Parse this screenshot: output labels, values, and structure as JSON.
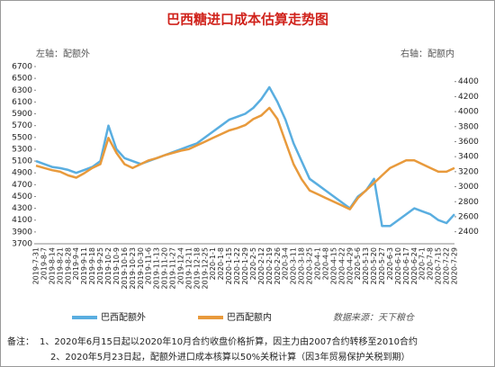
{
  "chart_data": {
    "type": "line",
    "title": "巴西糖进口成本估算走势图",
    "left_axis_label": "左轴：配额外",
    "right_axis_label": "右轴：配额内",
    "source": "数据来源：天下粮仓",
    "notes_title": "备注：",
    "notes": [
      "1、2020年6月15日起以2020年10月合约收盘价格折算，因主力由2007合约转移至2010合约",
      "2、2020年5月23日起，配额外进口成本核算以50%关税计算（因3年贸易保护关税到期）"
    ],
    "categories": [
      "2019-7-31",
      "2019-8-7",
      "2019-8-14",
      "2019-8-21",
      "2019-8-28",
      "2019-9-4",
      "2019-9-11",
      "2019-9-18",
      "2019-9-25",
      "2019-10-2",
      "2019-10-9",
      "2019-10-16",
      "2019-10-23",
      "2019-10-30",
      "2019-11-6",
      "2019-11-13",
      "2019-11-20",
      "2019-11-27",
      "2019-12-4",
      "2019-12-11",
      "2019-12-18",
      "2019-12-25",
      "2020-1-1",
      "2020-1-8",
      "2020-1-15",
      "2020-1-22",
      "2020-1-29",
      "2020-2-5",
      "2020-2-12",
      "2020-2-19",
      "2020-2-26",
      "2020-3-4",
      "2020-3-11",
      "2020-3-18",
      "2020-3-25",
      "2020-4-1",
      "2020-4-8",
      "2020-4-15",
      "2020-4-22",
      "2020-4-29",
      "2020-5-6",
      "2020-5-13",
      "2020-5-20",
      "2020-5-27",
      "2020-6-3",
      "2020-6-10",
      "2020-6-17",
      "2020-6-24",
      "2020-7-1",
      "2020-7-8",
      "2020-7-15",
      "2020-7-22",
      "2020-7-29"
    ],
    "series": [
      {
        "name": "巴西配额外",
        "color": "#5aaee0",
        "axis": "y",
        "values": [
          5100,
          5050,
          5000,
          4980,
          4950,
          4900,
          4950,
          5000,
          5100,
          5700,
          5300,
          5150,
          5100,
          5050,
          5100,
          5150,
          5200,
          5250,
          5300,
          5350,
          5400,
          5500,
          5600,
          5700,
          5800,
          5850,
          5900,
          6000,
          6150,
          6350,
          6100,
          5800,
          5400,
          5100,
          4800,
          4700,
          4600,
          4500,
          4400,
          4300,
          4500,
          4600,
          4800,
          4000,
          4000,
          4100,
          4200,
          4300,
          4250,
          4200,
          4100,
          4050,
          4200
        ]
      },
      {
        "name": "巴西配额内",
        "color": "#e89a3c",
        "axis": "y2",
        "values": [
          3280,
          3250,
          3220,
          3200,
          3150,
          3120,
          3180,
          3250,
          3300,
          3650,
          3450,
          3300,
          3250,
          3300,
          3350,
          3380,
          3420,
          3450,
          3480,
          3500,
          3550,
          3600,
          3650,
          3700,
          3750,
          3780,
          3820,
          3900,
          3950,
          4050,
          3900,
          3600,
          3300,
          3100,
          2950,
          2900,
          2850,
          2800,
          2750,
          2700,
          2850,
          2950,
          3050,
          3150,
          3250,
          3300,
          3350,
          3350,
          3300,
          3250,
          3200,
          3200,
          3250
        ]
      }
    ],
    "ylim": [
      3700,
      6700
    ],
    "yticks": [
      3700,
      3900,
      4100,
      4300,
      4500,
      4700,
      4900,
      5100,
      5300,
      5500,
      5700,
      5900,
      6100,
      6300,
      6500,
      6700
    ],
    "y2lim": [
      2240,
      4600
    ],
    "y2ticks": [
      2400,
      2600,
      2800,
      3000,
      3200,
      3400,
      3600,
      3800,
      4000,
      4200,
      4400
    ]
  }
}
